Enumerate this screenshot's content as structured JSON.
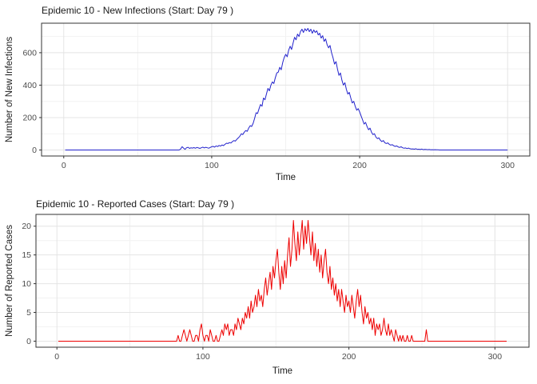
{
  "page": {
    "background": "#ffffff"
  },
  "chart_data": [
    {
      "type": "line",
      "title": "Epidemic 10 - New Infections (Start: Day 79 )",
      "xlabel": "Time",
      "ylabel": "Number of New Infections",
      "line_color": "#2222CC",
      "grid": true,
      "legend": "none",
      "x_start": 1,
      "xlim": [
        -15,
        315
      ],
      "ylim": [
        -37,
        782
      ],
      "x_ticks": [
        0,
        100,
        200,
        300
      ],
      "y_ticks": [
        0,
        200,
        400,
        600
      ],
      "x_minor": [
        50,
        150,
        250
      ],
      "y_minor": [
        100,
        300,
        500,
        700
      ],
      "y": [
        0,
        0,
        0,
        0,
        0,
        0,
        0,
        0,
        0,
        0,
        0,
        0,
        0,
        0,
        0,
        0,
        0,
        0,
        0,
        0,
        0,
        0,
        0,
        0,
        0,
        0,
        0,
        0,
        0,
        0,
        0,
        0,
        0,
        0,
        0,
        0,
        0,
        0,
        0,
        0,
        0,
        0,
        0,
        0,
        0,
        0,
        0,
        0,
        0,
        0,
        0,
        0,
        0,
        0,
        0,
        0,
        0,
        0,
        0,
        0,
        0,
        0,
        0,
        0,
        0,
        0,
        0,
        0,
        0,
        0,
        0,
        0,
        0,
        0,
        0,
        0,
        0,
        0,
        6,
        20,
        12,
        4,
        14,
        17,
        10,
        14,
        12,
        15,
        11,
        16,
        13,
        10,
        14,
        18,
        13,
        17,
        14,
        11,
        16,
        20,
        22,
        18,
        25,
        21,
        28,
        24,
        31,
        27,
        35,
        42,
        40,
        46,
        43,
        52,
        58,
        55,
        66,
        75,
        85,
        100,
        95,
        110,
        120,
        115,
        135,
        150,
        145,
        165,
        195,
        230,
        225,
        255,
        280,
        270,
        320,
        310,
        345,
        380,
        365,
        400,
        420,
        410,
        445,
        475,
        480,
        510,
        495,
        540,
        570,
        590,
        575,
        615,
        640,
        620,
        660,
        695,
        680,
        715,
        700,
        730,
        745,
        725,
        748,
        735,
        750,
        730,
        745,
        720,
        740,
        725,
        735,
        710,
        720,
        690,
        705,
        670,
        685,
        650,
        630,
        645,
        600,
        570,
        530,
        545,
        500,
        460,
        475,
        430,
        400,
        415,
        375,
        345,
        355,
        320,
        290,
        300,
        270,
        245,
        255,
        235,
        210,
        185,
        160,
        170,
        145,
        125,
        135,
        110,
        95,
        100,
        80,
        70,
        75,
        60,
        52,
        58,
        45,
        40,
        44,
        35,
        30,
        33,
        26,
        22,
        25,
        19,
        16,
        20,
        14,
        11,
        13,
        9,
        12,
        8,
        6,
        7,
        5,
        8,
        4,
        5,
        3,
        6,
        2,
        4,
        3,
        2,
        3,
        1,
        2,
        1,
        2,
        1,
        1,
        0,
        0,
        0,
        0,
        0,
        0,
        0,
        0,
        0,
        0,
        0,
        0,
        0,
        0,
        0,
        0,
        0,
        0,
        0,
        0,
        0,
        0,
        0,
        0,
        0,
        0,
        0,
        0,
        0,
        0,
        0,
        0,
        0,
        0,
        0,
        0,
        0,
        0,
        0,
        0,
        0,
        0,
        0,
        0,
        0,
        0,
        0
      ]
    },
    {
      "type": "line",
      "title": "Epidemic 10 - Reported Cases (Start: Day 79 )",
      "xlabel": "Time",
      "ylabel": "Number of Reported Cases",
      "line_color": "#EE0000",
      "grid": true,
      "legend": "none",
      "x_start": 1,
      "xlim": [
        -14.35,
        323.35
      ],
      "ylim": [
        -1.05,
        22.05
      ],
      "x_ticks": [
        0,
        100,
        200,
        300
      ],
      "y_ticks": [
        0,
        5,
        10,
        15,
        20
      ],
      "x_minor": [
        50,
        150,
        250
      ],
      "y_minor": [
        2.5,
        7.5,
        12.5,
        17.5
      ],
      "y": [
        0,
        0,
        0,
        0,
        0,
        0,
        0,
        0,
        0,
        0,
        0,
        0,
        0,
        0,
        0,
        0,
        0,
        0,
        0,
        0,
        0,
        0,
        0,
        0,
        0,
        0,
        0,
        0,
        0,
        0,
        0,
        0,
        0,
        0,
        0,
        0,
        0,
        0,
        0,
        0,
        0,
        0,
        0,
        0,
        0,
        0,
        0,
        0,
        0,
        0,
        0,
        0,
        0,
        0,
        0,
        0,
        0,
        0,
        0,
        0,
        0,
        0,
        0,
        0,
        0,
        0,
        0,
        0,
        0,
        0,
        0,
        0,
        0,
        0,
        0,
        0,
        0,
        0,
        0,
        0,
        0,
        0,
        1,
        0,
        0,
        1,
        2,
        1,
        0,
        1,
        2,
        1,
        0,
        0,
        1,
        1,
        0,
        2,
        3,
        1,
        0,
        1,
        1,
        0,
        2,
        1,
        0,
        0,
        1,
        0,
        0,
        1,
        2,
        1,
        3,
        2,
        3,
        1,
        2,
        2,
        1,
        3,
        2,
        4,
        3,
        2,
        4,
        3,
        5,
        4,
        6,
        4,
        7,
        5,
        6,
        8,
        6,
        9,
        7,
        8,
        6,
        9,
        11,
        8,
        10,
        12,
        9,
        13,
        11,
        14,
        16,
        12,
        9,
        13,
        10,
        14,
        11,
        15,
        18,
        13,
        16,
        21,
        17,
        14,
        19,
        15,
        18,
        21,
        16,
        20,
        17,
        21,
        18,
        15,
        19,
        14,
        17,
        13,
        16,
        12,
        15,
        11,
        14,
        16,
        12,
        10,
        13,
        9,
        11,
        8,
        10,
        7,
        9,
        6,
        9,
        7,
        5,
        8,
        6,
        7,
        5,
        8,
        6,
        4,
        7,
        9,
        6,
        8,
        5,
        3,
        6,
        4,
        5,
        3,
        4,
        2,
        4,
        1,
        3,
        2,
        3,
        1,
        2,
        4,
        2,
        1,
        3,
        1,
        2,
        1,
        0,
        2,
        1,
        0,
        1,
        0,
        1,
        0,
        0,
        1,
        0,
        0,
        1,
        0,
        0,
        0,
        0,
        0,
        0,
        0,
        0,
        0,
        2,
        0,
        0,
        0,
        0,
        0,
        0,
        0,
        0,
        0,
        0,
        0,
        0,
        0,
        0,
        0,
        0,
        0,
        0,
        0,
        0,
        0,
        0,
        0,
        0,
        0,
        0,
        0,
        0,
        0,
        0,
        0,
        0,
        0,
        0,
        0,
        0,
        0,
        0,
        0,
        0,
        0,
        0,
        0,
        0,
        0,
        0,
        0,
        0,
        0,
        0,
        0,
        0,
        0,
        0,
        0
      ]
    }
  ]
}
